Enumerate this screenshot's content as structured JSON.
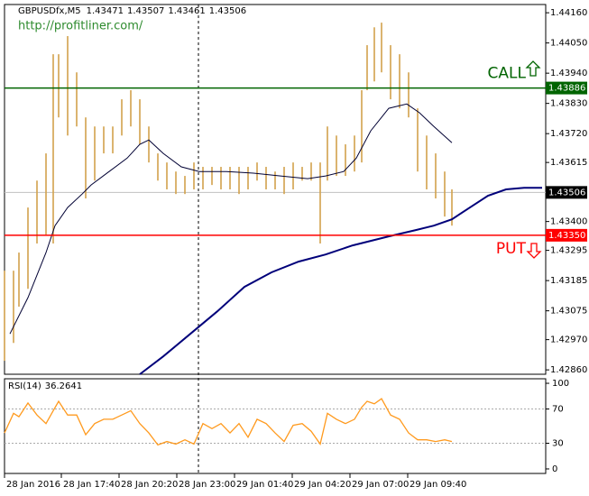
{
  "chart_data": [
    {
      "type": "ohlc",
      "title": "GBPUSDfx,M5",
      "header_values": [
        1.43471,
        1.43507,
        1.43461,
        1.43506
      ],
      "watermark": "http://profitliner.com/",
      "color": "#d2a24c",
      "x": [
        0,
        5,
        8,
        13,
        18,
        23,
        27,
        30,
        35,
        40,
        45,
        50,
        55,
        60,
        65,
        70,
        75,
        80,
        85,
        90,
        95,
        100,
        105,
        110,
        115,
        120,
        125,
        130,
        135,
        140,
        145,
        150,
        155,
        160,
        165,
        170,
        175,
        179,
        184,
        189,
        194,
        198,
        201,
        205,
        209,
        214,
        219,
        224,
        229,
        234,
        239,
        244,
        248
      ],
      "high": [
        1.43221,
        1.43221,
        1.43287,
        1.43451,
        1.43549,
        1.43648,
        1.44009,
        1.44009,
        1.44075,
        1.43943,
        1.43779,
        1.43746,
        1.43746,
        1.43746,
        1.43845,
        1.43878,
        1.43845,
        1.43746,
        1.43648,
        1.43615,
        1.43582,
        1.43566,
        1.43615,
        1.43599,
        1.43599,
        1.43599,
        1.43599,
        1.43599,
        1.43599,
        1.43615,
        1.43599,
        1.43582,
        1.43599,
        1.43615,
        1.43599,
        1.43615,
        1.43615,
        1.43746,
        1.43713,
        1.43681,
        1.43713,
        1.43878,
        1.44042,
        1.44107,
        1.44124,
        1.44042,
        1.44009,
        1.43943,
        1.43812,
        1.43713,
        1.43648,
        1.43582,
        1.43517
      ],
      "low": [
        1.42893,
        1.42958,
        1.4309,
        1.43155,
        1.4332,
        1.43352,
        1.4332,
        1.43779,
        1.43713,
        1.43746,
        1.43484,
        1.43549,
        1.43648,
        1.43648,
        1.43713,
        1.43746,
        1.43681,
        1.43615,
        1.43549,
        1.43517,
        1.435,
        1.435,
        1.43517,
        1.43517,
        1.43533,
        1.43517,
        1.43517,
        1.435,
        1.43517,
        1.43549,
        1.43517,
        1.43517,
        1.435,
        1.43517,
        1.43549,
        1.43549,
        1.4332,
        1.43549,
        1.43566,
        1.43566,
        1.43582,
        1.43615,
        1.43878,
        1.4391,
        1.43943,
        1.43845,
        1.43812,
        1.43779,
        1.43582,
        1.43517,
        1.43484,
        1.43418,
        1.43385
      ],
      "lines": [
        {
          "color": "#000033",
          "width": 1,
          "x": [
            3,
            13,
            23,
            28,
            35,
            43,
            48,
            58,
            68,
            75,
            80,
            88,
            98,
            108,
            123,
            138,
            153,
            168,
            178,
            188,
            195,
            203,
            213,
            223,
            230,
            238,
            248
          ],
          "values": [
            1.42991,
            1.43123,
            1.43287,
            1.43385,
            1.43451,
            1.435,
            1.43533,
            1.43582,
            1.43631,
            1.43681,
            1.43697,
            1.43648,
            1.43599,
            1.43582,
            1.43582,
            1.43576,
            1.43566,
            1.43556,
            1.43566,
            1.43582,
            1.43631,
            1.4373,
            1.43812,
            1.43828,
            1.43796,
            1.43746,
            1.43687
          ]
        },
        {
          "color": "#00007a",
          "width": 2,
          "x": [
            75,
            88,
            103,
            118,
            133,
            148,
            163,
            178,
            193,
            213,
            228,
            238,
            248,
            258,
            268,
            278,
            288,
            298
          ],
          "values": [
            1.42844,
            1.42909,
            1.42991,
            1.43073,
            1.43162,
            1.43215,
            1.43254,
            1.4328,
            1.43313,
            1.43346,
            1.43369,
            1.43385,
            1.43408,
            1.43451,
            1.43494,
            1.43517,
            1.43523,
            1.43523
          ]
        }
      ],
      "levels": [
        {
          "name": "CALL",
          "value": 1.43886,
          "color": "#006400"
        },
        {
          "name": "PUT",
          "value": 1.4335,
          "value_label": "1.43350",
          "color": "#ff0000"
        }
      ],
      "current_price": 1.43506,
      "current_color": "#c0c0c0",
      "xlim": [
        0,
        300
      ],
      "xticks": [
        {
          "value": 0,
          "label": "28 Jan 2016"
        },
        {
          "value": 31.5,
          "label": "28 Jan 17:40"
        },
        {
          "value": 63.5,
          "label": "28 Jan 20:20"
        },
        {
          "value": 95.5,
          "label": "28 Jan 23:00"
        },
        {
          "value": 127.5,
          "label": "29 Jan 01:40"
        },
        {
          "value": 159.5,
          "label": "29 Jan 04:20"
        },
        {
          "value": 191.5,
          "label": "29 Jan 07:00"
        },
        {
          "value": 223.5,
          "label": "29 Jan 09:40"
        }
      ],
      "ylim": [
        1.42844,
        1.4419
      ],
      "yticks": [
        {
          "value": 1.4416,
          "label": "1.44160"
        },
        {
          "value": 1.4405,
          "label": "1.44050"
        },
        {
          "value": 1.4394,
          "label": "1.43940"
        },
        {
          "value": 1.4383,
          "label": "1.43830"
        },
        {
          "value": 1.4372,
          "label": "1.43720"
        },
        1.43615,
        {
          "value": 1.434,
          "label": "1.43400"
        },
        1.43295,
        1.43185,
        1.43075,
        {
          "value": 1.4297,
          "label": "1.42970"
        },
        {
          "value": 1.4286,
          "label": "1.42860"
        }
      ]
    },
    {
      "type": "line",
      "title": "RSI(14)",
      "title_value": 36.2641,
      "color": "#ff9a1e",
      "x": [
        0,
        5,
        8,
        13,
        18,
        23,
        27,
        30,
        35,
        40,
        45,
        50,
        55,
        60,
        65,
        70,
        75,
        80,
        85,
        90,
        95,
        100,
        105,
        110,
        115,
        120,
        125,
        130,
        135,
        140,
        145,
        150,
        155,
        160,
        165,
        170,
        175,
        179,
        184,
        189,
        194,
        198,
        201,
        205,
        209,
        214,
        219,
        224,
        229,
        234,
        239,
        244,
        248
      ],
      "values": [
        42,
        65,
        61,
        77,
        63,
        53,
        68,
        79,
        63,
        63,
        40,
        53,
        58,
        58,
        63,
        68,
        53,
        42,
        28,
        32,
        29,
        34,
        29,
        53,
        47,
        53,
        42,
        53,
        37,
        58,
        53,
        42,
        32,
        51,
        53,
        44,
        29,
        65,
        58,
        53,
        58,
        72,
        79,
        76,
        82,
        63,
        58,
        42,
        34,
        34,
        32,
        34,
        32
      ],
      "xlim": [
        0,
        300
      ],
      "ylim": [
        -5.3,
        105.3
      ],
      "yticks": [
        100,
        70,
        30,
        0
      ],
      "grid_levels": [
        70,
        30
      ]
    }
  ]
}
